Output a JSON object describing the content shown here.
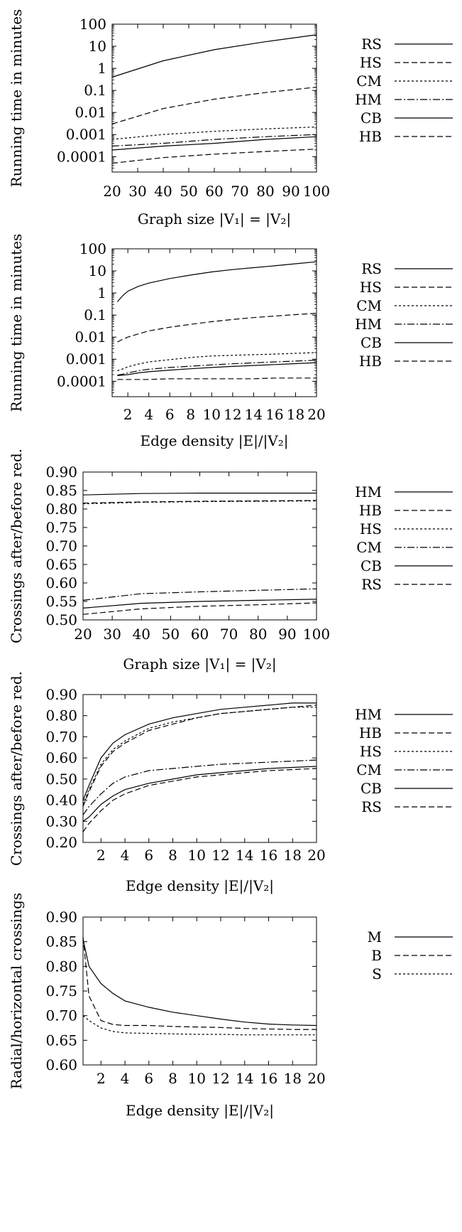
{
  "charts": [
    {
      "type": "line",
      "xlabel": "Graph size |V₁| = |V₂|",
      "ylabel": "Running time in minutes",
      "yscale": "log",
      "ylim": [
        2e-05,
        100
      ],
      "xlim": [
        20,
        100
      ],
      "xticks": [
        "20",
        "30",
        "40",
        "50",
        "60",
        "70",
        "80",
        "90",
        "100"
      ],
      "xtick_values": [
        20,
        30,
        40,
        50,
        60,
        70,
        80,
        90,
        100
      ],
      "yticks": [
        "100",
        "10",
        "1",
        "0.1",
        "0.01",
        "0.001",
        "0.0001"
      ],
      "ytick_values": [
        100,
        10,
        1,
        0.1,
        0.01,
        0.001,
        0.0001
      ],
      "legend": [
        "RS",
        "HS",
        "CM",
        "HM",
        "CB",
        "HB"
      ],
      "x": [
        20,
        40,
        60,
        80,
        100
      ],
      "series": [
        {
          "name": "RS",
          "style": "solid",
          "values": [
            0.4,
            2.2,
            7,
            16,
            33
          ]
        },
        {
          "name": "HS",
          "style": "dashed",
          "values": [
            0.003,
            0.015,
            0.04,
            0.08,
            0.14
          ]
        },
        {
          "name": "CM",
          "style": "dotted",
          "values": [
            0.0006,
            0.001,
            0.0014,
            0.0018,
            0.0022
          ]
        },
        {
          "name": "HM",
          "style": "dashdot",
          "values": [
            0.0003,
            0.0004,
            0.0006,
            0.0008,
            0.001
          ]
        },
        {
          "name": "CB",
          "style": "solid",
          "values": [
            0.0002,
            0.0003,
            0.0004,
            0.0006,
            0.0008
          ]
        },
        {
          "name": "HB",
          "style": "dashed",
          "values": [
            5e-05,
            9e-05,
            0.00013,
            0.00017,
            0.00022
          ]
        }
      ]
    },
    {
      "type": "line",
      "xlabel": "Edge density |E|/|V₂|",
      "ylabel": "Running time in minutes",
      "yscale": "log",
      "ylim": [
        2e-05,
        100
      ],
      "xlim": [
        0.5,
        20
      ],
      "xticks": [
        "2",
        "4",
        "6",
        "8",
        "10",
        "12",
        "14",
        "16",
        "18",
        "20"
      ],
      "xtick_values": [
        2,
        4,
        6,
        8,
        10,
        12,
        14,
        16,
        18,
        20
      ],
      "yticks": [
        "100",
        "10",
        "1",
        "0.1",
        "0.01",
        "0.001",
        "0.0001"
      ],
      "ytick_values": [
        100,
        10,
        1,
        0.1,
        0.01,
        0.001,
        0.0001
      ],
      "legend": [
        "RS",
        "HS",
        "CM",
        "HM",
        "CB",
        "HB"
      ],
      "x": [
        1,
        1.5,
        2,
        3,
        4,
        6,
        8,
        10,
        12,
        14,
        16,
        18,
        20
      ],
      "series": [
        {
          "name": "RS",
          "style": "solid",
          "values": [
            0.4,
            0.75,
            1.2,
            2.0,
            2.8,
            4.5,
            6.5,
            9,
            11.5,
            14,
            17,
            21,
            26
          ]
        },
        {
          "name": "HS",
          "style": "dashed",
          "values": [
            0.006,
            0.008,
            0.01,
            0.014,
            0.019,
            0.028,
            0.038,
            0.05,
            0.063,
            0.077,
            0.09,
            0.105,
            0.12
          ]
        },
        {
          "name": "CM",
          "style": "dotted",
          "values": [
            0.0003,
            0.00036,
            0.00045,
            0.0006,
            0.00075,
            0.00095,
            0.0012,
            0.0014,
            0.0015,
            0.0016,
            0.0017,
            0.00185,
            0.002
          ]
        },
        {
          "name": "HM",
          "style": "dashdot",
          "values": [
            0.00019,
            0.00021,
            0.00024,
            0.0003,
            0.00035,
            0.00042,
            0.00048,
            0.00055,
            0.00062,
            0.00068,
            0.00075,
            0.00082,
            0.0009
          ]
        },
        {
          "name": "CB",
          "style": "solid",
          "values": [
            0.00018,
            0.00019,
            0.0002,
            0.00024,
            0.00027,
            0.00032,
            0.00037,
            0.00042,
            0.00047,
            0.00052,
            0.00057,
            0.00063,
            0.0007
          ]
        },
        {
          "name": "HB",
          "style": "dashed",
          "values": [
            0.00012,
            0.00012,
            0.00012,
            0.00012,
            0.00012,
            0.00013,
            0.00013,
            0.00013,
            0.00013,
            0.00013,
            0.00014,
            0.00014,
            0.00014
          ]
        }
      ]
    },
    {
      "type": "line",
      "xlabel": "Graph size |V₁| = |V₂|",
      "ylabel": "Crossings after/before red.",
      "yscale": "linear",
      "ylim": [
        0.5,
        0.9
      ],
      "xlim": [
        20,
        100
      ],
      "xticks": [
        "20",
        "30",
        "40",
        "50",
        "60",
        "70",
        "80",
        "90",
        "100"
      ],
      "xtick_values": [
        20,
        30,
        40,
        50,
        60,
        70,
        80,
        90,
        100
      ],
      "yticks": [
        "0.90",
        "0.85",
        "0.80",
        "0.75",
        "0.70",
        "0.65",
        "0.60",
        "0.55",
        "0.50"
      ],
      "ytick_values": [
        0.9,
        0.85,
        0.8,
        0.75,
        0.7,
        0.65,
        0.6,
        0.55,
        0.5
      ],
      "legend": [
        "HM",
        "HB",
        "HS",
        "CM",
        "CB",
        "RS"
      ],
      "x": [
        20,
        40,
        60,
        80,
        100
      ],
      "series": [
        {
          "name": "HM",
          "style": "solid",
          "values": [
            0.838,
            0.842,
            0.843,
            0.843,
            0.843
          ]
        },
        {
          "name": "HB",
          "style": "dashed",
          "values": [
            0.816,
            0.819,
            0.821,
            0.822,
            0.823
          ]
        },
        {
          "name": "HS",
          "style": "dotted",
          "values": [
            0.814,
            0.818,
            0.82,
            0.821,
            0.822
          ]
        },
        {
          "name": "CM",
          "style": "dashdot",
          "values": [
            0.553,
            0.571,
            0.576,
            0.58,
            0.584
          ]
        },
        {
          "name": "CB",
          "style": "solid",
          "values": [
            0.532,
            0.545,
            0.55,
            0.553,
            0.556
          ]
        },
        {
          "name": "RS",
          "style": "dashed",
          "values": [
            0.515,
            0.53,
            0.537,
            0.541,
            0.546
          ]
        }
      ]
    },
    {
      "type": "line",
      "xlabel": "Edge density |E|/|V₂|",
      "ylabel": "Crossings after/before red.",
      "yscale": "linear",
      "ylim": [
        0.2,
        0.9
      ],
      "xlim": [
        0.5,
        20
      ],
      "xticks": [
        "2",
        "4",
        "6",
        "8",
        "10",
        "12",
        "14",
        "16",
        "18",
        "20"
      ],
      "xtick_values": [
        2,
        4,
        6,
        8,
        10,
        12,
        14,
        16,
        18,
        20
      ],
      "yticks": [
        "0.90",
        "0.80",
        "0.70",
        "0.60",
        "0.50",
        "0.40",
        "0.30",
        "0.20"
      ],
      "ytick_values": [
        0.9,
        0.8,
        0.7,
        0.6,
        0.5,
        0.4,
        0.3,
        0.2
      ],
      "legend": [
        "HM",
        "HB",
        "HS",
        "CM",
        "CB",
        "RS"
      ],
      "x": [
        0.5,
        1,
        2,
        3,
        4,
        6,
        8,
        10,
        12,
        14,
        16,
        18,
        20
      ],
      "series": [
        {
          "name": "HM",
          "style": "solid",
          "values": [
            0.4,
            0.47,
            0.6,
            0.67,
            0.71,
            0.76,
            0.79,
            0.81,
            0.83,
            0.84,
            0.85,
            0.86,
            0.86
          ]
        },
        {
          "name": "HB",
          "style": "dashed",
          "values": [
            0.37,
            0.44,
            0.56,
            0.63,
            0.67,
            0.73,
            0.76,
            0.79,
            0.81,
            0.82,
            0.83,
            0.84,
            0.85
          ]
        },
        {
          "name": "HS",
          "style": "dotted",
          "values": [
            0.38,
            0.45,
            0.57,
            0.64,
            0.68,
            0.74,
            0.77,
            0.79,
            0.81,
            0.82,
            0.83,
            0.84,
            0.84
          ]
        },
        {
          "name": "CM",
          "style": "dashdot",
          "values": [
            0.33,
            0.37,
            0.43,
            0.48,
            0.51,
            0.54,
            0.55,
            0.56,
            0.57,
            0.575,
            0.58,
            0.585,
            0.59
          ]
        },
        {
          "name": "CB",
          "style": "solid",
          "values": [
            0.3,
            0.32,
            0.38,
            0.42,
            0.45,
            0.48,
            0.5,
            0.52,
            0.53,
            0.54,
            0.55,
            0.555,
            0.56
          ]
        },
        {
          "name": "RS",
          "style": "dashed",
          "values": [
            0.25,
            0.29,
            0.35,
            0.4,
            0.43,
            0.47,
            0.49,
            0.51,
            0.52,
            0.53,
            0.54,
            0.545,
            0.55
          ]
        }
      ]
    },
    {
      "type": "line",
      "xlabel": "Edge density |E|/|V₂|",
      "ylabel": "Radial/horizontal crossings",
      "yscale": "linear",
      "ylim": [
        0.6,
        0.9
      ],
      "xlim": [
        0.5,
        20
      ],
      "xticks": [
        "2",
        "4",
        "6",
        "8",
        "10",
        "12",
        "14",
        "16",
        "18",
        "20"
      ],
      "xtick_values": [
        2,
        4,
        6,
        8,
        10,
        12,
        14,
        16,
        18,
        20
      ],
      "yticks": [
        "0.90",
        "0.85",
        "0.80",
        "0.75",
        "0.70",
        "0.65",
        "0.60"
      ],
      "ytick_values": [
        0.9,
        0.85,
        0.8,
        0.75,
        0.7,
        0.65,
        0.6
      ],
      "legend": [
        "M",
        "B",
        "S"
      ],
      "x": [
        0.5,
        1,
        2,
        3,
        4,
        6,
        8,
        10,
        12,
        14,
        16,
        18,
        20
      ],
      "series": [
        {
          "name": "M",
          "style": "solid",
          "values": [
            0.855,
            0.8,
            0.765,
            0.745,
            0.73,
            0.717,
            0.707,
            0.7,
            0.693,
            0.687,
            0.683,
            0.681,
            0.68
          ]
        },
        {
          "name": "B",
          "style": "dashed",
          "values": [
            0.86,
            0.74,
            0.69,
            0.682,
            0.68,
            0.68,
            0.678,
            0.677,
            0.676,
            0.674,
            0.673,
            0.672,
            0.672
          ]
        },
        {
          "name": "S",
          "style": "dotted",
          "values": [
            0.7,
            0.69,
            0.675,
            0.668,
            0.665,
            0.664,
            0.663,
            0.662,
            0.662,
            0.661,
            0.661,
            0.661,
            0.661
          ]
        }
      ]
    }
  ]
}
